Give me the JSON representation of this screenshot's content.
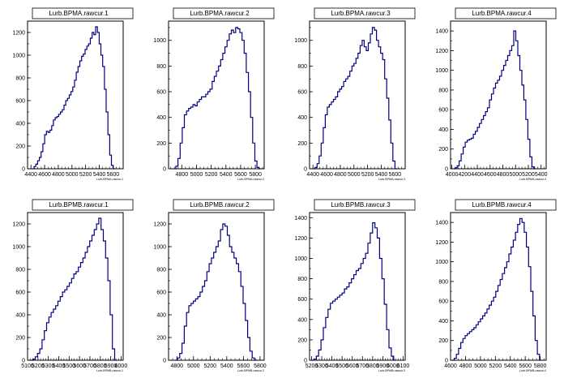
{
  "chart_data": [
    {
      "type": "histogram",
      "title": "Lurb.BPMA.rawcur.1",
      "xlabel": "Lurb.BPMA.rawcur.1",
      "x_ticks": [
        "4400",
        "4600",
        "4800",
        "5000",
        "5200",
        "5400",
        "5600"
      ],
      "xlim": [
        4350,
        5750
      ],
      "y_ticks": [
        "0",
        "200",
        "400",
        "600",
        "800",
        "1000",
        "1200"
      ],
      "ylim": [
        0,
        1300
      ],
      "bins": {
        "x_start": 4420,
        "x_end": 5630,
        "values": [
          0,
          20,
          40,
          70,
          100,
          150,
          220,
          300,
          330,
          320,
          340,
          380,
          430,
          450,
          460,
          480,
          500,
          520,
          560,
          600,
          620,
          650,
          680,
          720,
          780,
          850,
          900,
          950,
          990,
          1010,
          1050,
          1080,
          1100,
          1150,
          1200,
          1180,
          1250,
          1200,
          1100,
          1000,
          900,
          700,
          500,
          300,
          120,
          30,
          0
        ]
      }
    },
    {
      "type": "histogram",
      "title": "Lurb.BPMA.rawcur.2",
      "xlabel": "Lurb.BPMA.rawcur.2",
      "x_ticks": [
        "4800",
        "5000",
        "5200",
        "5400",
        "5600",
        "5800"
      ],
      "xlim": [
        4620,
        5920
      ],
      "y_ticks": [
        "0",
        "200",
        "400",
        "600",
        "800",
        "1000"
      ],
      "ylim": [
        0,
        1150
      ],
      "bins": {
        "x_start": 4690,
        "x_end": 5880,
        "values": [
          0,
          20,
          80,
          200,
          320,
          420,
          450,
          470,
          480,
          500,
          490,
          520,
          540,
          560,
          560,
          580,
          600,
          620,
          680,
          720,
          760,
          800,
          850,
          900,
          950,
          1000,
          1050,
          1080,
          1060,
          1100,
          1090,
          1060,
          1000,
          900,
          750,
          600,
          400,
          200,
          60,
          10,
          0
        ]
      }
    },
    {
      "type": "histogram",
      "title": "Lurb.BPMA.rawcur.3",
      "xlabel": "Lurb.BPMA.rawcur.3",
      "x_ticks": [
        "4400",
        "4600",
        "4800",
        "5000",
        "5200",
        "5400",
        "5600"
      ],
      "xlim": [
        4350,
        5750
      ],
      "y_ticks": [
        "0",
        "200",
        "400",
        "600",
        "800",
        "1000"
      ],
      "ylim": [
        0,
        1150
      ],
      "bins": {
        "x_start": 4400,
        "x_end": 5630,
        "values": [
          0,
          10,
          40,
          100,
          200,
          320,
          420,
          480,
          500,
          520,
          540,
          560,
          600,
          620,
          640,
          680,
          700,
          720,
          760,
          800,
          820,
          860,
          900,
          960,
          1000,
          950,
          920,
          980,
          1050,
          1100,
          1080,
          1000,
          950,
          900,
          850,
          700,
          550,
          380,
          200,
          60,
          0
        ]
      }
    },
    {
      "type": "histogram",
      "title": "Lurb.BPMA.rawcur.4",
      "xlabel": "Lurb.BPMA.rawcur.4",
      "x_ticks": [
        "4000",
        "4200",
        "4400",
        "4600",
        "4800",
        "5000",
        "5200",
        "5400"
      ],
      "xlim": [
        3980,
        5480
      ],
      "y_ticks": [
        "0",
        "200",
        "400",
        "600",
        "800",
        "1000",
        "1200",
        "1400"
      ],
      "ylim": [
        0,
        1500
      ],
      "bins": {
        "x_start": 4020,
        "x_end": 5320,
        "values": [
          0,
          10,
          30,
          80,
          150,
          220,
          270,
          290,
          300,
          310,
          350,
          380,
          420,
          460,
          500,
          540,
          580,
          620,
          700,
          760,
          820,
          870,
          900,
          940,
          1000,
          1050,
          1100,
          1150,
          1200,
          1250,
          1400,
          1300,
          1150,
          1000,
          850,
          700,
          500,
          300,
          120,
          20,
          0
        ]
      }
    },
    {
      "type": "histogram",
      "title": "Lurb.BPMB.rawcur.1",
      "xlabel": "Lurb.BPMB.rawcur.1",
      "x_ticks": [
        "5100",
        "5200",
        "5300",
        "5400",
        "5500",
        "5600",
        "5700",
        "5800",
        "5900",
        "6000"
      ],
      "xlim": [
        5100,
        6020
      ],
      "y_ticks": [
        "0",
        "200",
        "400",
        "600",
        "800",
        "1000",
        "1200"
      ],
      "ylim": [
        0,
        1300
      ],
      "bins": {
        "x_start": 5130,
        "x_end": 5960,
        "values": [
          0,
          10,
          30,
          60,
          100,
          180,
          260,
          330,
          380,
          420,
          450,
          480,
          520,
          560,
          600,
          620,
          650,
          680,
          720,
          760,
          780,
          820,
          860,
          900,
          950,
          1000,
          1050,
          1100,
          1150,
          1200,
          1250,
          1150,
          1050,
          900,
          700,
          400,
          100,
          0
        ]
      }
    },
    {
      "type": "histogram",
      "title": "Lurb.BPMB.rawcur.2",
      "xlabel": "Lurb.BPMB.rawcur.2",
      "x_ticks": [
        "4800",
        "5000",
        "5200",
        "5400",
        "5600",
        "5800"
      ],
      "xlim": [
        4700,
        5850
      ],
      "y_ticks": [
        "0",
        "200",
        "400",
        "600",
        "800",
        "1000",
        "1200"
      ],
      "ylim": [
        0,
        1300
      ],
      "bins": {
        "x_start": 4780,
        "x_end": 5760,
        "values": [
          0,
          20,
          60,
          150,
          300,
          420,
          480,
          500,
          520,
          540,
          560,
          600,
          650,
          700,
          780,
          850,
          900,
          950,
          1000,
          1050,
          1150,
          1200,
          1180,
          1100,
          1000,
          950,
          900,
          850,
          780,
          650,
          500,
          350,
          200,
          80,
          20,
          0
        ]
      }
    },
    {
      "type": "histogram",
      "title": "Lurb.BPMB.rawcur.3",
      "xlabel": "Lurb.BPMB.rawcur.3",
      "x_ticks": [
        "5200",
        "5300",
        "5400",
        "5500",
        "5600",
        "5700",
        "5800",
        "5900",
        "6000",
        "6100"
      ],
      "xlim": [
        5180,
        6120
      ],
      "y_ticks": [
        "0",
        "200",
        "400",
        "600",
        "800",
        "1000",
        "1200",
        "1400"
      ],
      "ylim": [
        0,
        1450
      ],
      "bins": {
        "x_start": 5200,
        "x_end": 6030,
        "values": [
          0,
          10,
          40,
          100,
          200,
          320,
          420,
          500,
          560,
          580,
          600,
          620,
          640,
          660,
          700,
          720,
          760,
          800,
          840,
          880,
          900,
          950,
          1000,
          1050,
          1150,
          1250,
          1350,
          1300,
          1200,
          1000,
          800,
          550,
          300,
          120,
          40,
          0
        ]
      }
    },
    {
      "type": "histogram",
      "title": "Lurb.BPMB.rawcur.4",
      "xlabel": "Lurb.BPMB.rawcur.4",
      "x_ticks": [
        "4600",
        "4800",
        "5000",
        "5200",
        "5400",
        "5600",
        "5800"
      ],
      "xlim": [
        4600,
        5880
      ],
      "y_ticks": [
        "0",
        "200",
        "400",
        "600",
        "800",
        "1000",
        "1200",
        "1400"
      ],
      "ylim": [
        0,
        1500
      ],
      "bins": {
        "x_start": 4620,
        "x_end": 5820,
        "values": [
          0,
          20,
          60,
          120,
          180,
          220,
          250,
          270,
          290,
          310,
          330,
          360,
          390,
          420,
          450,
          480,
          520,
          560,
          600,
          640,
          700,
          760,
          820,
          880,
          940,
          1000,
          1080,
          1150,
          1220,
          1300,
          1380,
          1440,
          1400,
          1300,
          1150,
          950,
          700,
          450,
          200,
          60,
          0
        ]
      }
    }
  ]
}
